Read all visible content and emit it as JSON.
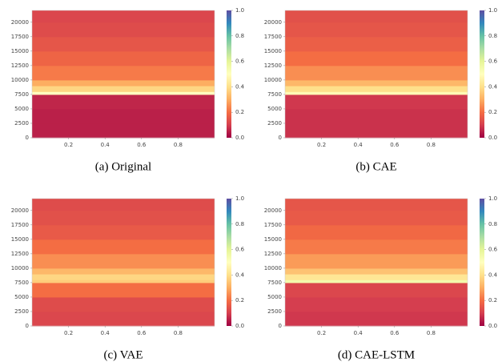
{
  "chart_data": [
    {
      "type": "heatmap",
      "caption": "(a) Original",
      "y_bins": [
        0,
        2500,
        5000,
        7500,
        8000,
        9000,
        10000,
        12500,
        15000,
        17500,
        20000,
        22050
      ],
      "values": [
        0.05,
        0.05,
        0.06,
        0.5,
        0.38,
        0.3,
        0.22,
        0.18,
        0.15,
        0.13,
        0.12
      ],
      "xlim": [
        0,
        1
      ],
      "ylim": [
        0,
        22050
      ],
      "xticks": [
        0.2,
        0.4,
        0.6,
        0.8
      ],
      "yticks": [
        0,
        2500,
        5000,
        7500,
        10000,
        12500,
        15000,
        17500,
        20000
      ],
      "colorbar_lim": [
        0,
        1
      ],
      "colorbar_ticks": [
        {
          "value": 0,
          "label": "0.0"
        },
        0.2,
        0.4,
        0.6,
        0.8,
        {
          "value": 1,
          "label": "1.0"
        }
      ],
      "colormap": [
        "#9e0142",
        "#d53e4f",
        "#f46d43",
        "#fdae61",
        "#fee08b",
        "#ffffbf",
        "#e6f598",
        "#abdda4",
        "#66c2a5",
        "#3288bd",
        "#5e4fa2"
      ]
    },
    {
      "type": "heatmap",
      "caption": "(b) CAE",
      "y_bins": [
        0,
        2500,
        5000,
        7500,
        8000,
        9000,
        10000,
        12500,
        15000,
        17500,
        20000,
        22050
      ],
      "values": [
        0.08,
        0.08,
        0.09,
        0.48,
        0.4,
        0.32,
        0.25,
        0.2,
        0.17,
        0.15,
        0.14
      ],
      "xlim": [
        0,
        1
      ],
      "ylim": [
        0,
        22050
      ],
      "xticks": [
        0.2,
        0.4,
        0.6,
        0.8
      ],
      "yticks": [
        0,
        2500,
        5000,
        7500,
        10000,
        12500,
        15000,
        17500,
        20000
      ],
      "colorbar_lim": [
        0,
        1
      ],
      "colorbar_ticks": [
        {
          "value": 0,
          "label": "0.0"
        },
        0.2,
        0.4,
        0.6,
        0.8,
        {
          "value": 1,
          "label": "1.0"
        }
      ],
      "colormap": [
        "#9e0142",
        "#d53e4f",
        "#f46d43",
        "#fdae61",
        "#fee08b",
        "#ffffbf",
        "#e6f598",
        "#abdda4",
        "#66c2a5",
        "#3288bd",
        "#5e4fa2"
      ]
    },
    {
      "type": "heatmap",
      "caption": "(c) VAE",
      "y_bins": [
        0,
        2500,
        5000,
        7500,
        8000,
        9000,
        10000,
        12500,
        15000,
        17500,
        20000,
        22050
      ],
      "values": [
        0.12,
        0.13,
        0.2,
        0.36,
        0.38,
        0.32,
        0.25,
        0.2,
        0.16,
        0.14,
        0.13
      ],
      "xlim": [
        0,
        1
      ],
      "ylim": [
        0,
        22050
      ],
      "xticks": [
        0.2,
        0.4,
        0.6,
        0.8
      ],
      "yticks": [
        0,
        2500,
        5000,
        7500,
        10000,
        12500,
        15000,
        17500,
        20000
      ],
      "colorbar_lim": [
        0,
        1
      ],
      "colorbar_ticks": [
        {
          "value": 0,
          "label": "0.0"
        },
        0.2,
        0.4,
        0.6,
        0.8,
        {
          "value": 1,
          "label": "1.0"
        }
      ],
      "colormap": [
        "#9e0142",
        "#d53e4f",
        "#f46d43",
        "#fdae61",
        "#fee08b",
        "#ffffbf",
        "#e6f598",
        "#abdda4",
        "#66c2a5",
        "#3288bd",
        "#5e4fa2"
      ]
    },
    {
      "type": "heatmap",
      "caption": "(d) CAE-LSTM",
      "y_bins": [
        0,
        2500,
        5000,
        7500,
        8000,
        9000,
        10000,
        12500,
        15000,
        17500,
        20000,
        22050
      ],
      "values": [
        0.09,
        0.1,
        0.12,
        0.55,
        0.42,
        0.34,
        0.27,
        0.22,
        0.19,
        0.16,
        0.15
      ],
      "xlim": [
        0,
        1
      ],
      "ylim": [
        0,
        22050
      ],
      "xticks": [
        0.2,
        0.4,
        0.6,
        0.8
      ],
      "yticks": [
        0,
        2500,
        5000,
        7500,
        10000,
        12500,
        15000,
        17500,
        20000
      ],
      "colorbar_lim": [
        0,
        1
      ],
      "colorbar_ticks": [
        {
          "value": 0,
          "label": "0.0"
        },
        0.2,
        0.4,
        0.6,
        0.8,
        {
          "value": 1,
          "label": "1.0"
        }
      ],
      "colormap": [
        "#9e0142",
        "#d53e4f",
        "#f46d43",
        "#fdae61",
        "#fee08b",
        "#ffffbf",
        "#e6f598",
        "#abdda4",
        "#66c2a5",
        "#3288bd",
        "#5e4fa2"
      ]
    }
  ]
}
